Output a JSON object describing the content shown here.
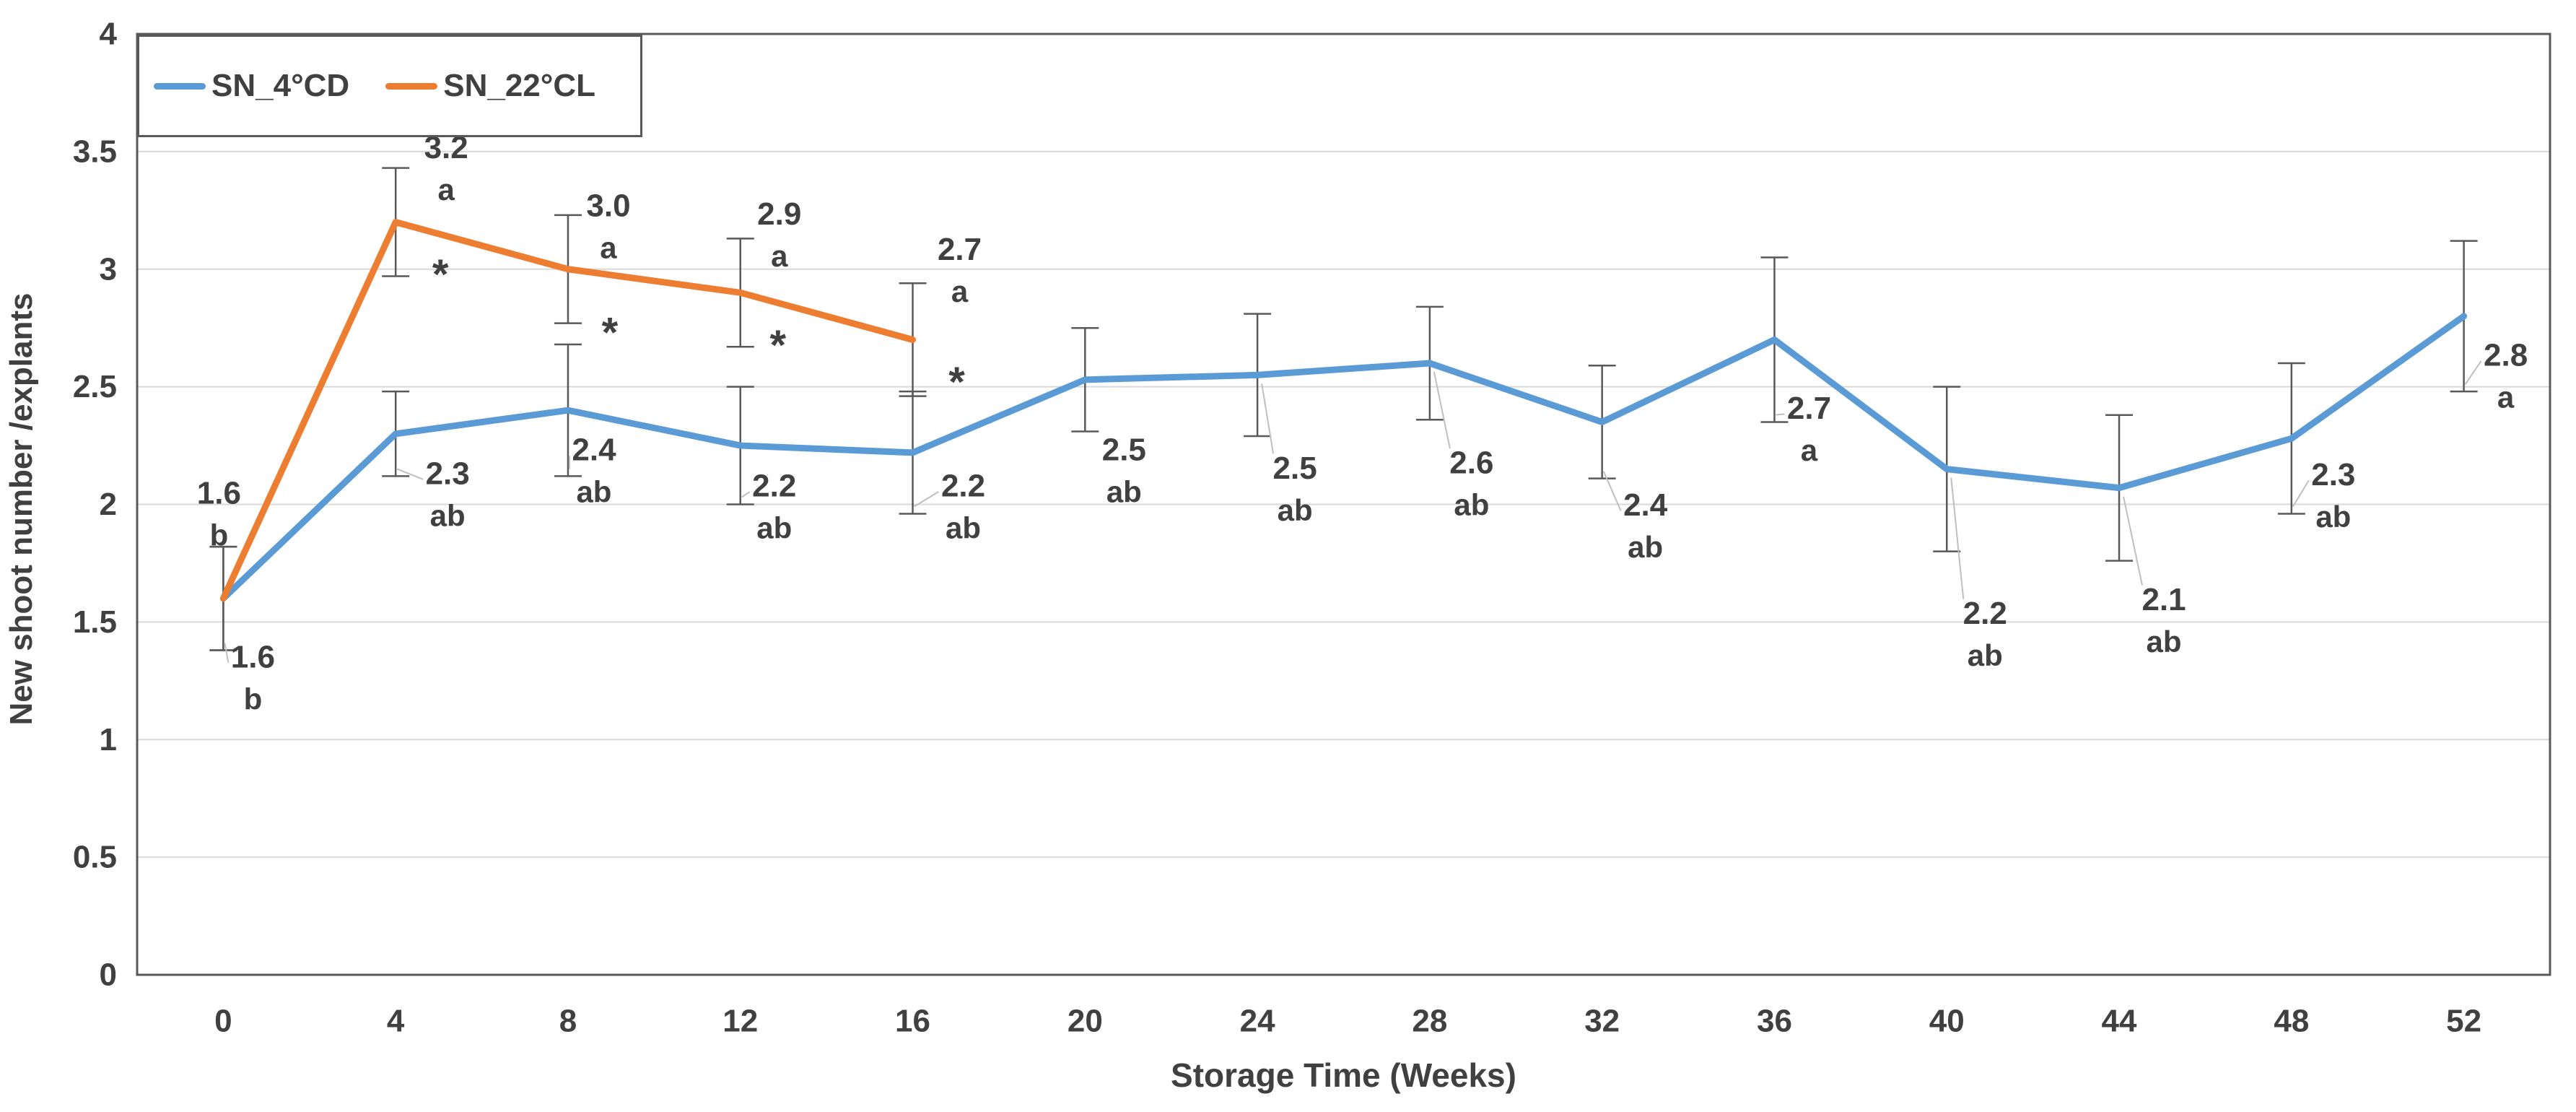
{
  "chart_data": {
    "type": "line",
    "title": "",
    "xlabel": "Storage Time (Weeks)",
    "ylabel": "New shoot number /explants",
    "x_categories": [
      0,
      4,
      8,
      12,
      16,
      20,
      24,
      28,
      32,
      36,
      40,
      44,
      48,
      52
    ],
    "ylim": [
      0,
      4
    ],
    "ytick_step": 0.5,
    "ytick_labels": [
      "0",
      "0.5",
      "1",
      "1.5",
      "2",
      "2.5",
      "3",
      "3.5",
      "4"
    ],
    "grid": true,
    "legend_position": "top-left-inside",
    "colors": {
      "axis": "#595959",
      "grid": "#D9D9D9",
      "text": "#404040",
      "error_bar": "#595959",
      "leader": "#BFBFBF",
      "background": "#FFFFFF"
    },
    "series": [
      {
        "name": "SN_4°CD",
        "color": "#5B9BD5",
        "points": [
          {
            "week": 0,
            "value": 1.6,
            "err": 0.22,
            "label": "1.6",
            "letter": "b",
            "dx": 41,
            "dy": 81,
            "leader": true
          },
          {
            "week": 4,
            "value": 2.3,
            "err": 0.18,
            "label": "2.3",
            "letter": "ab",
            "dx": 72,
            "dy": 55,
            "leader": true
          },
          {
            "week": 8,
            "value": 2.4,
            "err": 0.28,
            "label": "2.4",
            "letter": "ab",
            "dx": 36,
            "dy": 55,
            "leader": true
          },
          {
            "week": 12,
            "value": 2.25,
            "err": 0.25,
            "label": "2.2",
            "letter": "ab",
            "dx": 47,
            "dy": 56,
            "leader": true
          },
          {
            "week": 16,
            "value": 2.22,
            "err": 0.26,
            "label": "2.2",
            "letter": "ab",
            "dx": 70,
            "dy": 46,
            "leader": true
          },
          {
            "week": 20,
            "value": 2.53,
            "err": 0.22,
            "label": "2.5",
            "letter": "ab",
            "dx": 54,
            "dy": 97,
            "leader": false
          },
          {
            "week": 24,
            "value": 2.55,
            "err": 0.26,
            "label": "2.5",
            "letter": "ab",
            "dx": 52,
            "dy": 129,
            "leader": true
          },
          {
            "week": 28,
            "value": 2.6,
            "err": 0.24,
            "label": "2.6",
            "letter": "ab",
            "dx": 58,
            "dy": 138,
            "leader": true
          },
          {
            "week": 32,
            "value": 2.35,
            "err": 0.24,
            "label": "2.4",
            "letter": "ab",
            "dx": 60,
            "dy": 115,
            "leader": true
          },
          {
            "week": 36,
            "value": 2.7,
            "err": 0.35,
            "label": "2.7",
            "letter": "a",
            "dx": 48,
            "dy": 95,
            "leader": true
          },
          {
            "week": 40,
            "value": 2.15,
            "err": 0.35,
            "label": "2.2",
            "letter": "ab",
            "dx": 53,
            "dy": 200,
            "leader": true
          },
          {
            "week": 44,
            "value": 2.07,
            "err": 0.31,
            "label": "2.1",
            "letter": "ab",
            "dx": 62,
            "dy": 155,
            "leader": true
          },
          {
            "week": 48,
            "value": 2.28,
            "err": 0.32,
            "label": "2.3",
            "letter": "ab",
            "dx": 58,
            "dy": 50,
            "leader": true
          },
          {
            "week": 52,
            "value": 2.8,
            "err": 0.32,
            "label": "2.8",
            "letter": "a",
            "dx": 58,
            "dy": 54,
            "leader": true
          }
        ]
      },
      {
        "name": "SN_22°CL",
        "color": "#ED7D31",
        "points": [
          {
            "week": 0,
            "value": 1.6,
            "err": 0.22,
            "label": "1.6",
            "letter": "b",
            "dx": -6,
            "dy": -146,
            "leader": false,
            "star": false
          },
          {
            "week": 4,
            "value": 3.2,
            "err": 0.23,
            "label": "3.2",
            "letter": "a",
            "dx": 70,
            "dy": -103,
            "leader": false,
            "star": true,
            "star_dx": 62,
            "star_dy": 59
          },
          {
            "week": 8,
            "value": 3.0,
            "err": 0.23,
            "label": "3.0",
            "letter": "a",
            "dx": 56,
            "dy": -88,
            "leader": false,
            "star": true,
            "star_dx": 58,
            "star_dy": 74
          },
          {
            "week": 12,
            "value": 2.9,
            "err": 0.23,
            "label": "2.9",
            "letter": "a",
            "dx": 54,
            "dy": -109,
            "leader": false,
            "star": true,
            "star_dx": 52,
            "star_dy": 59
          },
          {
            "week": 16,
            "value": 2.7,
            "err": 0.24,
            "label": "2.7",
            "letter": "a",
            "dx": 65,
            "dy": -125,
            "leader": false,
            "star": true,
            "star_dx": 61,
            "star_dy": 45
          }
        ]
      }
    ]
  }
}
